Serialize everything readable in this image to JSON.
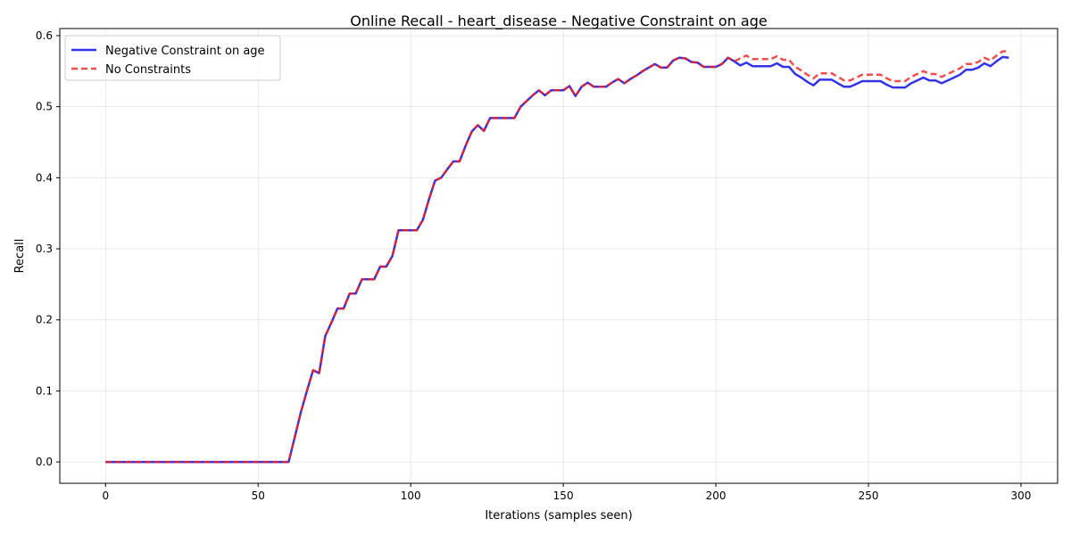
{
  "chart_data": {
    "type": "line",
    "title": "Online Recall - heart_disease - Negative Constraint on age",
    "xlabel": "Iterations (samples seen)",
    "ylabel": "Recall",
    "xlim": [
      -15,
      312
    ],
    "ylim": [
      -0.03,
      0.61
    ],
    "xticks": [
      0,
      50,
      100,
      150,
      200,
      250,
      300
    ],
    "yticks": [
      0.0,
      0.1,
      0.2,
      0.3,
      0.4,
      0.5,
      0.6
    ],
    "xtick_labels": [
      "0",
      "50",
      "100",
      "150",
      "200",
      "250",
      "300"
    ],
    "ytick_labels": [
      "0.0",
      "0.1",
      "0.2",
      "0.3",
      "0.4",
      "0.5",
      "0.6"
    ],
    "grid": true,
    "legend_position": "top-left",
    "series": [
      {
        "name": "Negative Constraint on age",
        "color": "#0000dd",
        "style": "solid",
        "points": [
          [
            0,
            0
          ],
          [
            60,
            0
          ],
          [
            62,
            0.035
          ],
          [
            64,
            0.07
          ],
          [
            66,
            0.1
          ],
          [
            68,
            0.129
          ],
          [
            70,
            0.125
          ],
          [
            72,
            0.177
          ],
          [
            74,
            0.196
          ],
          [
            76,
            0.216
          ],
          [
            78,
            0.216
          ],
          [
            80,
            0.237
          ],
          [
            82,
            0.237
          ],
          [
            84,
            0.257
          ],
          [
            86,
            0.257
          ],
          [
            88,
            0.257
          ],
          [
            90,
            0.275
          ],
          [
            92,
            0.275
          ],
          [
            94,
            0.29
          ],
          [
            96,
            0.326
          ],
          [
            98,
            0.326
          ],
          [
            100,
            0.326
          ],
          [
            102,
            0.326
          ],
          [
            104,
            0.341
          ],
          [
            106,
            0.37
          ],
          [
            108,
            0.396
          ],
          [
            110,
            0.4
          ],
          [
            112,
            0.412
          ],
          [
            114,
            0.423
          ],
          [
            116,
            0.423
          ],
          [
            118,
            0.445
          ],
          [
            120,
            0.465
          ],
          [
            122,
            0.474
          ],
          [
            124,
            0.466
          ],
          [
            126,
            0.484
          ],
          [
            128,
            0.484
          ],
          [
            130,
            0.484
          ],
          [
            132,
            0.484
          ],
          [
            134,
            0.484
          ],
          [
            136,
            0.5
          ],
          [
            138,
            0.508
          ],
          [
            140,
            0.516
          ],
          [
            142,
            0.523
          ],
          [
            144,
            0.516
          ],
          [
            146,
            0.523
          ],
          [
            148,
            0.523
          ],
          [
            150,
            0.523
          ],
          [
            152,
            0.529
          ],
          [
            154,
            0.515
          ],
          [
            156,
            0.528
          ],
          [
            158,
            0.534
          ],
          [
            160,
            0.528
          ],
          [
            162,
            0.528
          ],
          [
            164,
            0.528
          ],
          [
            166,
            0.534
          ],
          [
            168,
            0.539
          ],
          [
            170,
            0.533
          ],
          [
            172,
            0.539
          ],
          [
            174,
            0.544
          ],
          [
            176,
            0.55
          ],
          [
            178,
            0.555
          ],
          [
            180,
            0.56
          ],
          [
            182,
            0.555
          ],
          [
            184,
            0.555
          ],
          [
            186,
            0.565
          ],
          [
            188,
            0.569
          ],
          [
            190,
            0.568
          ],
          [
            192,
            0.563
          ],
          [
            194,
            0.562
          ],
          [
            196,
            0.556
          ],
          [
            198,
            0.556
          ],
          [
            200,
            0.556
          ],
          [
            202,
            0.56
          ],
          [
            204,
            0.569
          ],
          [
            206,
            0.564
          ],
          [
            208,
            0.558
          ],
          [
            210,
            0.562
          ],
          [
            212,
            0.557
          ],
          [
            214,
            0.557
          ],
          [
            216,
            0.557
          ],
          [
            218,
            0.557
          ],
          [
            220,
            0.561
          ],
          [
            222,
            0.556
          ],
          [
            224,
            0.556
          ],
          [
            226,
            0.546
          ],
          [
            228,
            0.541
          ],
          [
            230,
            0.535
          ],
          [
            232,
            0.53
          ],
          [
            234,
            0.538
          ],
          [
            236,
            0.538
          ],
          [
            238,
            0.538
          ],
          [
            240,
            0.533
          ],
          [
            242,
            0.528
          ],
          [
            244,
            0.528
          ],
          [
            246,
            0.532
          ],
          [
            248,
            0.536
          ],
          [
            250,
            0.536
          ],
          [
            252,
            0.536
          ],
          [
            254,
            0.536
          ],
          [
            256,
            0.531
          ],
          [
            258,
            0.527
          ],
          [
            260,
            0.527
          ],
          [
            262,
            0.527
          ],
          [
            264,
            0.533
          ],
          [
            266,
            0.537
          ],
          [
            268,
            0.541
          ],
          [
            270,
            0.537
          ],
          [
            272,
            0.537
          ],
          [
            274,
            0.533
          ],
          [
            276,
            0.537
          ],
          [
            278,
            0.541
          ],
          [
            280,
            0.545
          ],
          [
            282,
            0.552
          ],
          [
            284,
            0.552
          ],
          [
            286,
            0.555
          ],
          [
            288,
            0.561
          ],
          [
            290,
            0.557
          ],
          [
            292,
            0.564
          ],
          [
            294,
            0.57
          ],
          [
            296,
            0.569
          ]
        ]
      },
      {
        "name": "No Constraints",
        "color": "#ee2222",
        "style": "dashed",
        "points": [
          [
            0,
            0
          ],
          [
            60,
            0
          ],
          [
            62,
            0.035
          ],
          [
            64,
            0.07
          ],
          [
            66,
            0.1
          ],
          [
            68,
            0.129
          ],
          [
            70,
            0.125
          ],
          [
            72,
            0.177
          ],
          [
            74,
            0.196
          ],
          [
            76,
            0.216
          ],
          [
            78,
            0.216
          ],
          [
            80,
            0.237
          ],
          [
            82,
            0.237
          ],
          [
            84,
            0.257
          ],
          [
            86,
            0.257
          ],
          [
            88,
            0.257
          ],
          [
            90,
            0.275
          ],
          [
            92,
            0.275
          ],
          [
            94,
            0.29
          ],
          [
            96,
            0.326
          ],
          [
            98,
            0.326
          ],
          [
            100,
            0.326
          ],
          [
            102,
            0.326
          ],
          [
            104,
            0.341
          ],
          [
            106,
            0.37
          ],
          [
            108,
            0.396
          ],
          [
            110,
            0.4
          ],
          [
            112,
            0.412
          ],
          [
            114,
            0.423
          ],
          [
            116,
            0.423
          ],
          [
            118,
            0.445
          ],
          [
            120,
            0.465
          ],
          [
            122,
            0.474
          ],
          [
            124,
            0.466
          ],
          [
            126,
            0.484
          ],
          [
            128,
            0.484
          ],
          [
            130,
            0.484
          ],
          [
            132,
            0.484
          ],
          [
            134,
            0.484
          ],
          [
            136,
            0.5
          ],
          [
            138,
            0.508
          ],
          [
            140,
            0.516
          ],
          [
            142,
            0.523
          ],
          [
            144,
            0.516
          ],
          [
            146,
            0.523
          ],
          [
            148,
            0.523
          ],
          [
            150,
            0.523
          ],
          [
            152,
            0.529
          ],
          [
            154,
            0.515
          ],
          [
            156,
            0.528
          ],
          [
            158,
            0.534
          ],
          [
            160,
            0.528
          ],
          [
            162,
            0.528
          ],
          [
            164,
            0.528
          ],
          [
            166,
            0.534
          ],
          [
            168,
            0.539
          ],
          [
            170,
            0.533
          ],
          [
            172,
            0.539
          ],
          [
            174,
            0.544
          ],
          [
            176,
            0.55
          ],
          [
            178,
            0.555
          ],
          [
            180,
            0.56
          ],
          [
            182,
            0.555
          ],
          [
            184,
            0.555
          ],
          [
            186,
            0.565
          ],
          [
            188,
            0.569
          ],
          [
            190,
            0.568
          ],
          [
            192,
            0.563
          ],
          [
            194,
            0.562
          ],
          [
            196,
            0.556
          ],
          [
            198,
            0.556
          ],
          [
            200,
            0.556
          ],
          [
            202,
            0.56
          ],
          [
            204,
            0.569
          ],
          [
            206,
            0.564
          ],
          [
            208,
            0.568
          ],
          [
            210,
            0.572
          ],
          [
            212,
            0.567
          ],
          [
            214,
            0.567
          ],
          [
            216,
            0.567
          ],
          [
            218,
            0.567
          ],
          [
            220,
            0.571
          ],
          [
            222,
            0.566
          ],
          [
            224,
            0.566
          ],
          [
            226,
            0.556
          ],
          [
            228,
            0.551
          ],
          [
            230,
            0.545
          ],
          [
            232,
            0.54
          ],
          [
            234,
            0.547
          ],
          [
            236,
            0.547
          ],
          [
            238,
            0.547
          ],
          [
            240,
            0.542
          ],
          [
            242,
            0.537
          ],
          [
            244,
            0.537
          ],
          [
            246,
            0.541
          ],
          [
            248,
            0.545
          ],
          [
            250,
            0.545
          ],
          [
            252,
            0.545
          ],
          [
            254,
            0.545
          ],
          [
            256,
            0.54
          ],
          [
            258,
            0.536
          ],
          [
            260,
            0.536
          ],
          [
            262,
            0.536
          ],
          [
            264,
            0.542
          ],
          [
            266,
            0.546
          ],
          [
            268,
            0.55
          ],
          [
            270,
            0.546
          ],
          [
            272,
            0.546
          ],
          [
            274,
            0.542
          ],
          [
            276,
            0.546
          ],
          [
            278,
            0.55
          ],
          [
            280,
            0.554
          ],
          [
            282,
            0.56
          ],
          [
            284,
            0.56
          ],
          [
            286,
            0.563
          ],
          [
            288,
            0.569
          ],
          [
            290,
            0.565
          ],
          [
            292,
            0.572
          ],
          [
            294,
            0.578
          ],
          [
            296,
            0.578
          ]
        ]
      }
    ]
  }
}
